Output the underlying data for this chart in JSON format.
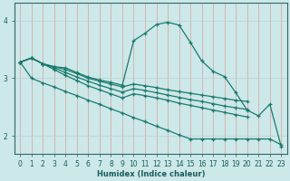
{
  "xlabel": "Humidex (Indice chaleur)",
  "bg_color": "#cce8e8",
  "grid_color": "#b0d8d8",
  "line_color": "#1a7a6e",
  "xlim": [
    -0.5,
    23.5
  ],
  "ylim": [
    1.7,
    4.3
  ],
  "xticks": [
    0,
    1,
    2,
    3,
    4,
    5,
    6,
    7,
    8,
    9,
    10,
    11,
    12,
    13,
    14,
    15,
    16,
    17,
    18,
    19,
    20,
    21,
    22,
    23
  ],
  "yticks": [
    2,
    3,
    4
  ],
  "lines": [
    {
      "x": [
        0,
        1,
        2,
        3,
        4,
        5,
        6,
        7,
        8,
        9,
        10,
        11,
        12,
        13,
        14,
        15,
        16,
        17,
        18,
        19,
        20,
        21,
        22,
        23
      ],
      "y": [
        3.28,
        3.35,
        3.25,
        3.2,
        3.18,
        3.1,
        3.02,
        2.97,
        2.93,
        2.88,
        3.65,
        3.78,
        3.93,
        3.97,
        3.92,
        3.62,
        3.3,
        3.12,
        3.03,
        2.75,
        2.45,
        2.35,
        2.55,
        1.82
      ]
    },
    {
      "x": [
        0,
        1,
        2,
        3,
        4,
        5,
        6,
        7,
        8,
        9,
        10,
        11,
        12,
        13,
        14,
        15,
        16,
        17,
        18,
        19,
        20
      ],
      "y": [
        3.28,
        3.35,
        3.25,
        3.2,
        3.15,
        3.08,
        3.0,
        2.95,
        2.9,
        2.85,
        2.9,
        2.87,
        2.84,
        2.8,
        2.77,
        2.74,
        2.71,
        2.68,
        2.65,
        2.62,
        2.6
      ]
    },
    {
      "x": [
        0,
        1,
        2,
        3,
        4,
        5,
        6,
        7,
        8,
        9,
        10,
        11,
        12,
        13,
        14,
        15,
        16,
        17,
        18,
        19,
        20
      ],
      "y": [
        3.28,
        3.35,
        3.25,
        3.18,
        3.1,
        3.02,
        2.95,
        2.88,
        2.82,
        2.76,
        2.82,
        2.79,
        2.75,
        2.71,
        2.67,
        2.63,
        2.6,
        2.56,
        2.52,
        2.49,
        2.46
      ]
    },
    {
      "x": [
        0,
        1,
        2,
        3,
        4,
        5,
        6,
        7,
        8,
        9,
        10,
        11,
        12,
        13,
        14,
        15,
        16,
        17,
        18,
        19,
        20
      ],
      "y": [
        3.28,
        3.35,
        3.25,
        3.15,
        3.05,
        2.96,
        2.87,
        2.8,
        2.73,
        2.66,
        2.73,
        2.7,
        2.66,
        2.62,
        2.57,
        2.53,
        2.49,
        2.45,
        2.41,
        2.37,
        2.33
      ]
    },
    {
      "x": [
        0,
        1,
        2,
        3,
        4,
        5,
        6,
        7,
        8,
        9,
        10,
        11,
        12,
        13,
        14,
        15,
        16,
        17,
        18,
        19,
        20,
        21,
        22,
        23
      ],
      "y": [
        3.28,
        3.0,
        2.92,
        2.85,
        2.77,
        2.7,
        2.62,
        2.55,
        2.47,
        2.4,
        2.32,
        2.25,
        2.17,
        2.1,
        2.02,
        1.95,
        1.95,
        1.95,
        1.95,
        1.95,
        1.95,
        1.95,
        1.95,
        1.85
      ]
    }
  ]
}
